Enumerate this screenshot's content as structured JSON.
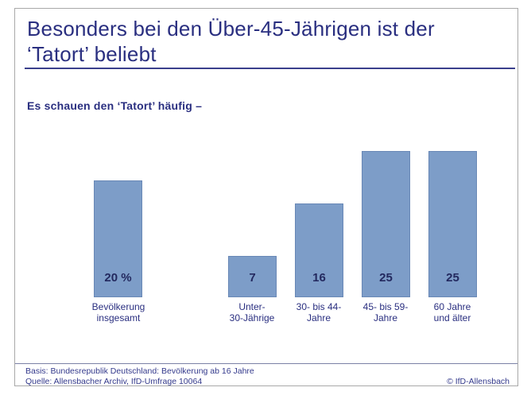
{
  "page": {
    "title": "Besonders bei den Über-45-Jährigen ist der\n‘Tatort’ beliebt",
    "subtitle": "Es schauen den ‘Tatort’ häufig –"
  },
  "chart_data": {
    "type": "bar",
    "title": "Besonders bei den Über-45-Jährigen ist der ‘Tatort’ beliebt",
    "subtitle": "Es schauen den ‘Tatort’ häufig –",
    "categories": [
      "Bevölkerung insgesamt",
      "Unter-30-Jährige",
      "30- bis 44-Jahre",
      "45- bis 59-Jahre",
      "60 Jahre und älter"
    ],
    "values": [
      20,
      7,
      16,
      25,
      25
    ],
    "unit": "%",
    "ylim": [
      0,
      25
    ],
    "grid": false,
    "legend": false,
    "bar_color": "#7d9dc8",
    "bars": [
      {
        "display_value": "20 %",
        "label": "Bevölkerung\ninsgesamt"
      },
      {
        "display_value": "7",
        "label": "Unter-\n30-Jährige"
      },
      {
        "display_value": "16",
        "label": "30- bis 44-\nJahre"
      },
      {
        "display_value": "25",
        "label": "45- bis 59-\nJahre"
      },
      {
        "display_value": "25",
        "label": "60 Jahre\nund älter"
      }
    ]
  },
  "footer": {
    "basis": "Basis: Bundesrepublik Deutschland: Bevölkerung ab 16 Jahre",
    "quelle": "Quelle: Allensbacher Archiv, IfD-Umfrage 10064",
    "copyright": "© IfD-Allensbach"
  },
  "colors": {
    "navy_text": "#2a2f80",
    "bar_fill": "#7d9dc8",
    "bar_border": "#6988b6",
    "frame_border": "#a9a9a9"
  }
}
